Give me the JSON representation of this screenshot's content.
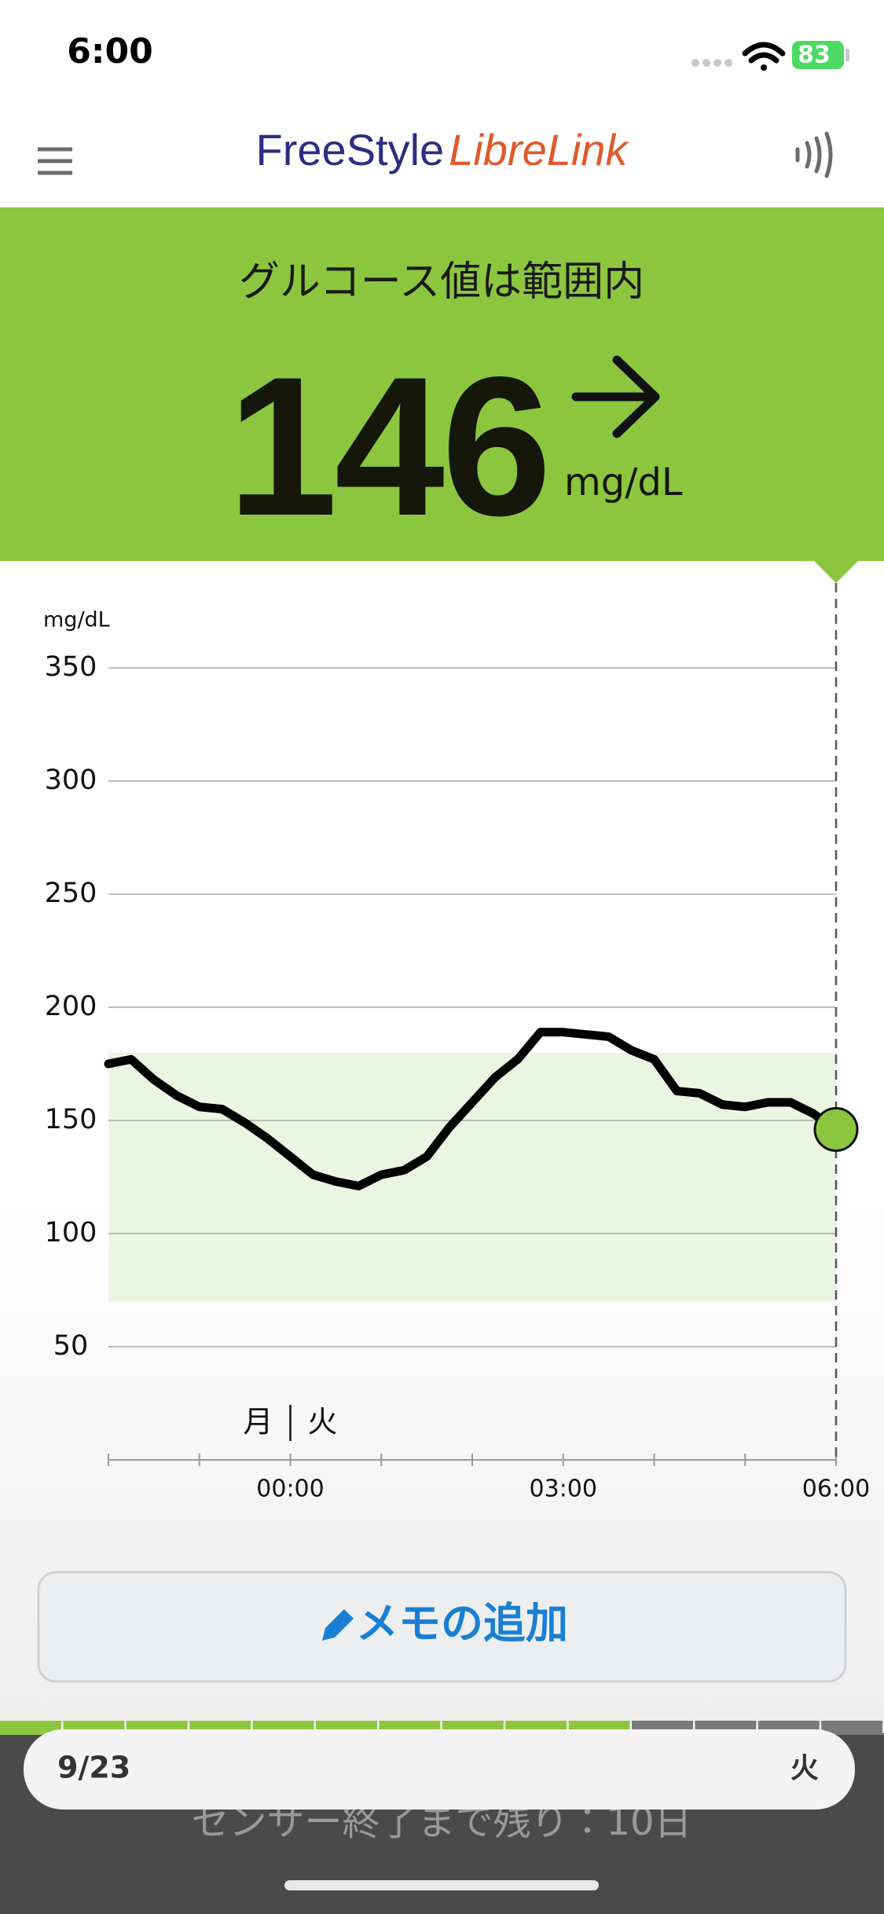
{
  "status": {
    "time": "6:00",
    "battery": "83"
  },
  "header": {
    "logo_part1": "FreeStyle",
    "logo_part2": "LibreLink"
  },
  "banner": {
    "status": "グルコース値は範囲内",
    "value": "146",
    "unit": "mg/dL"
  },
  "chart_data": {
    "type": "line",
    "y_axis_label": "mg/dL",
    "color": "#000000",
    "marker_color": "#8cc63f",
    "x": [
      -2,
      -1.75,
      -1.5,
      -1.25,
      -1,
      -0.75,
      -0.5,
      -0.25,
      0,
      0.25,
      0.5,
      0.75,
      1,
      1.25,
      1.5,
      1.75,
      2,
      2.25,
      2.5,
      2.75,
      3,
      3.25,
      3.5,
      3.75,
      4,
      4.25,
      4.5,
      4.75,
      5,
      5.25,
      5.5,
      5.75,
      6
    ],
    "values": [
      175,
      177,
      168,
      161,
      156,
      155,
      149,
      142,
      134,
      126,
      123,
      121,
      126,
      128,
      134,
      147,
      158,
      169,
      177,
      189,
      189,
      188,
      187,
      181,
      177,
      163,
      162,
      157,
      156,
      158,
      158,
      153,
      146
    ],
    "xlim": [
      -2,
      6
    ],
    "xticks": [
      {
        "value": 0,
        "label": "00:00"
      },
      {
        "value": 3,
        "label": "03:00"
      },
      {
        "value": 6,
        "label": "06:00"
      }
    ],
    "xminorticks": [
      -2,
      -1,
      1,
      2,
      4,
      5
    ],
    "ylim": [
      0,
      350
    ],
    "yticks": [
      50,
      100,
      150,
      200,
      250,
      300,
      350
    ],
    "grid": true,
    "target_range": [
      70,
      180
    ],
    "target_color": "#ebf5e1",
    "day_labels": [
      "月",
      "火"
    ]
  },
  "memo_button": {
    "label": "メモの追加"
  },
  "footer": {
    "date": "9/23",
    "weekday": "火",
    "sensor_remaining": "センサー終了まで残り：10日"
  }
}
